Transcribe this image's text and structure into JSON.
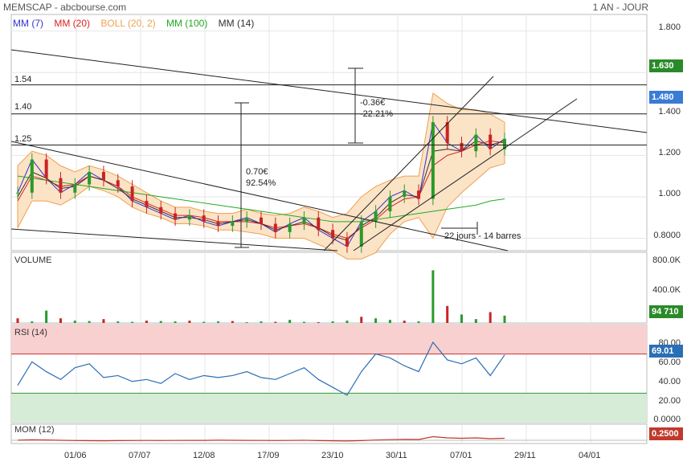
{
  "header": {
    "left": "MEMSCAP - abcbourse.com",
    "right": "1 AN - JOUR"
  },
  "legend": [
    {
      "label": "MM (7)",
      "color": "#3333cc"
    },
    {
      "label": "MM (20)",
      "color": "#dd2222"
    },
    {
      "label": "BOLL (20, 2)",
      "color": "#f0a050"
    },
    {
      "label": "MM (100)",
      "color": "#22aa22"
    },
    {
      "label": "MM (14)",
      "color": "#333333"
    }
  ],
  "panels": {
    "volume": "VOLUME",
    "rsi": "RSI (14)",
    "mom": "MOM (12)"
  },
  "price_axis": [
    "1.800",
    "1.600",
    "1.400",
    "1.200",
    "1.000",
    "0.8000"
  ],
  "volume_axis": [
    "800.0K",
    "400.0K"
  ],
  "rsi_axis": [
    "80.00",
    "60.00",
    "40.00",
    "20.00",
    "0.0000"
  ],
  "badges": {
    "price_high": {
      "text": "1.630",
      "color": "#2a8a2a"
    },
    "price_last": {
      "text": "1.480",
      "color": "#3a7bd5"
    },
    "volume": {
      "text": "94 710",
      "color": "#2a8a2a"
    },
    "rsi": {
      "text": "69.01",
      "color": "#2a6fb5"
    },
    "mom": {
      "text": "0.2500",
      "color": "#c0392b"
    }
  },
  "xaxis": [
    "01/06",
    "07/07",
    "12/08",
    "17/09",
    "23/10",
    "30/11",
    "07/01",
    "29/11",
    "04/01"
  ],
  "hlines": [
    "1.54",
    "1.40",
    "1.25"
  ],
  "annotations": {
    "rise": [
      "0.70€",
      "92.54%"
    ],
    "drop": [
      "-0.36€",
      "-22.21%"
    ],
    "period": "22 jours - 14 barres"
  },
  "chart_data": [
    {
      "type": "line",
      "title": "MEMSCAP",
      "ylim": [
        0.74,
        1.88
      ],
      "series": [
        {
          "name": "MM (7)",
          "values": [
            1.02,
            1.18,
            1.09,
            1.02,
            1.06,
            1.12,
            1.08,
            1.05,
            0.98,
            0.95,
            0.92,
            0.89,
            0.91,
            0.88,
            0.86,
            0.88,
            0.9,
            0.87,
            0.83,
            0.87,
            0.9,
            0.84,
            0.8,
            0.76,
            0.88,
            0.93,
            1.0,
            1.03,
            0.99,
            1.36,
            1.26,
            1.22,
            1.3,
            1.23,
            1.28
          ]
        },
        {
          "name": "MM (20)",
          "values": [
            0.98,
            1.1,
            1.08,
            1.05,
            1.06,
            1.1,
            1.08,
            1.05,
            1.0,
            0.97,
            0.94,
            0.91,
            0.91,
            0.9,
            0.88,
            0.88,
            0.88,
            0.87,
            0.85,
            0.86,
            0.87,
            0.85,
            0.82,
            0.8,
            0.85,
            0.89,
            0.95,
            0.99,
            1.0,
            1.15,
            1.2,
            1.22,
            1.25,
            1.27,
            1.26
          ]
        },
        {
          "name": "MM (100)",
          "values": [
            1.1,
            1.09,
            1.08,
            1.07,
            1.06,
            1.05,
            1.04,
            1.03,
            1.02,
            1.01,
            1.0,
            0.99,
            0.98,
            0.97,
            0.96,
            0.95,
            0.94,
            0.93,
            0.92,
            0.91,
            0.9,
            0.89,
            0.88,
            0.88,
            0.88,
            0.89,
            0.9,
            0.91,
            0.92,
            0.93,
            0.94,
            0.95,
            0.96,
            0.98,
            0.99
          ]
        },
        {
          "name": "MM (14)",
          "values": [
            1.0,
            1.12,
            1.09,
            1.04,
            1.05,
            1.1,
            1.08,
            1.04,
            0.99,
            0.96,
            0.93,
            0.9,
            0.9,
            0.89,
            0.87,
            0.88,
            0.89,
            0.87,
            0.84,
            0.86,
            0.88,
            0.85,
            0.81,
            0.79,
            0.86,
            0.9,
            0.97,
            1.01,
            1.0,
            1.22,
            1.23,
            1.22,
            1.27,
            1.25,
            1.27
          ]
        }
      ],
      "bollinger_upper": [
        1.15,
        1.22,
        1.2,
        1.15,
        1.12,
        1.15,
        1.13,
        1.1,
        1.06,
        1.02,
        0.98,
        0.95,
        0.95,
        0.93,
        0.92,
        0.92,
        0.94,
        0.92,
        0.91,
        0.92,
        0.95,
        0.93,
        0.9,
        0.92,
        1.0,
        1.05,
        1.08,
        1.1,
        1.1,
        1.5,
        1.45,
        1.42,
        1.42,
        1.4,
        1.36
      ],
      "bollinger_lower": [
        0.85,
        0.98,
        0.98,
        0.96,
        1.0,
        1.05,
        1.03,
        1.0,
        0.95,
        0.92,
        0.9,
        0.87,
        0.87,
        0.86,
        0.84,
        0.84,
        0.83,
        0.82,
        0.8,
        0.8,
        0.8,
        0.77,
        0.74,
        0.7,
        0.7,
        0.73,
        0.82,
        0.88,
        0.9,
        0.8,
        0.95,
        1.02,
        1.08,
        1.14,
        1.16
      ]
    },
    {
      "type": "bar",
      "title": "VOLUME",
      "ylim": [
        0,
        850000
      ],
      "values": [
        60000,
        20000,
        160000,
        60000,
        30000,
        25000,
        50000,
        20000,
        15000,
        30000,
        25000,
        20000,
        30000,
        15000,
        20000,
        25000,
        10000,
        20000,
        15000,
        40000,
        15000,
        10000,
        20000,
        30000,
        80000,
        60000,
        40000,
        30000,
        20000,
        680000,
        220000,
        110000,
        50000,
        140000,
        94710
      ]
    },
    {
      "type": "line",
      "title": "RSI (14)",
      "ylim": [
        0,
        100
      ],
      "values": [
        38,
        62,
        52,
        44,
        56,
        60,
        46,
        48,
        42,
        44,
        40,
        50,
        44,
        48,
        46,
        48,
        52,
        46,
        44,
        50,
        56,
        44,
        36,
        28,
        52,
        70,
        66,
        58,
        52,
        82,
        64,
        60,
        66,
        48,
        69.01
      ]
    },
    {
      "type": "line",
      "title": "MOM (12)",
      "values": [
        0.02,
        0.06,
        0.04,
        0.0,
        -0.03,
        -0.05,
        -0.06,
        -0.04,
        -0.03,
        -0.02,
        -0.03,
        -0.02,
        -0.01,
        -0.01,
        0.01,
        0.0,
        -0.01,
        -0.02,
        -0.03,
        -0.02,
        0.0,
        -0.04,
        -0.06,
        -0.09,
        -0.04,
        0.03,
        0.08,
        0.12,
        0.1,
        0.45,
        0.3,
        0.25,
        0.3,
        0.2,
        0.25
      ]
    }
  ]
}
